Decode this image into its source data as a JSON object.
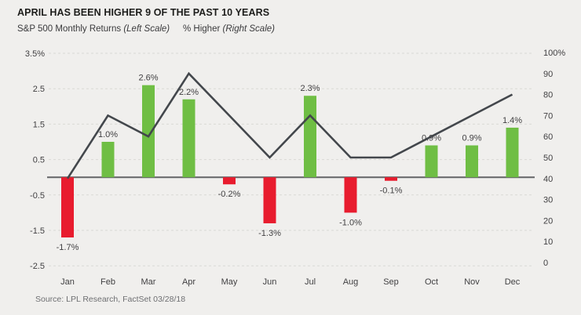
{
  "header": {
    "title": "APRIL HAS BEEN HIGHER 9 OF THE PAST 10 YEARS",
    "legend": [
      {
        "label": "S&P 500 Monthly Returns",
        "qualifier": "(Left Scale)"
      },
      {
        "label": "% Higher",
        "qualifier": "(Right Scale)"
      }
    ]
  },
  "footer": {
    "source": "Source: LPL Research, FactSet 03/28/18"
  },
  "colors": {
    "background": "#f0efed",
    "bar_positive": "#6fbe44",
    "bar_negative": "#e81c2e",
    "line": "#43474c",
    "gridline": "#d9d9d5",
    "zero_line": "#636466",
    "label_text": "#3e3e40"
  },
  "chart_data": {
    "type": "bar+line",
    "title": "APRIL HAS BEEN HIGHER 9 OF THE PAST 10 YEARS",
    "categories": [
      "Jan",
      "Feb",
      "Mar",
      "Apr",
      "May",
      "Jun",
      "Jul",
      "Aug",
      "Sep",
      "Oct",
      "Nov",
      "Dec"
    ],
    "series": [
      {
        "name": "S&P 500 Monthly Returns",
        "type": "bar",
        "axis": "left",
        "values": [
          -1.7,
          1.0,
          2.6,
          2.2,
          -0.2,
          -1.3,
          2.3,
          -1.0,
          -0.1,
          0.9,
          0.9,
          1.4
        ],
        "labels": [
          "-1.7%",
          "1.0%",
          "2.6%",
          "2.2%",
          "-0.2%",
          "-1.3%",
          "2.3%",
          "-1.0%",
          "-0.1%",
          "0.9%",
          "0.9%",
          "1.4%"
        ],
        "positive_color": "#6fbe44",
        "negative_color": "#e81c2e"
      },
      {
        "name": "% Higher",
        "type": "line",
        "axis": "right",
        "values": [
          40,
          70,
          60,
          90,
          70,
          50,
          70,
          50,
          50,
          60,
          70,
          80
        ],
        "color": "#43474c"
      }
    ],
    "left_axis": {
      "tick_labels": [
        "3.5%",
        "2.5",
        "1.5",
        "0.5",
        "-0.5",
        "-1.5",
        "-2.5"
      ],
      "tick_values": [
        3.5,
        2.5,
        1.5,
        0.5,
        -0.5,
        -1.5,
        -2.5
      ],
      "min": -2.5,
      "max": 3.5
    },
    "right_axis": {
      "tick_labels": [
        "100%",
        "90",
        "80",
        "70",
        "60",
        "50",
        "40",
        "30",
        "20",
        "10",
        "0"
      ],
      "tick_values": [
        100,
        90,
        80,
        70,
        60,
        50,
        40,
        30,
        20,
        10,
        0
      ],
      "min": 0,
      "max": 100
    },
    "grid": {
      "style": "dashed",
      "horizontal": true
    },
    "legend_position": "top"
  }
}
